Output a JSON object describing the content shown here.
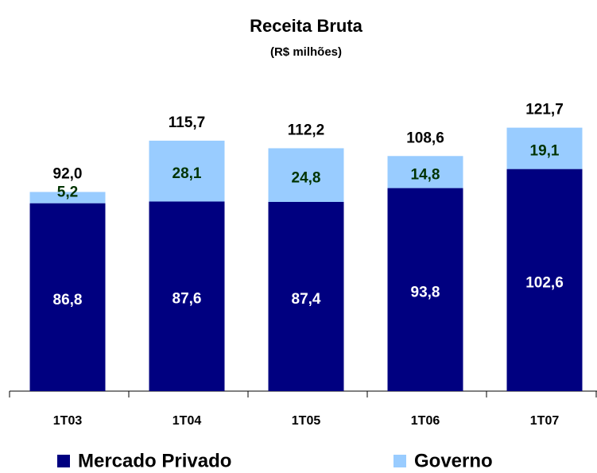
{
  "chart_data": {
    "type": "stacked_bar",
    "title": "Receita Bruta",
    "subtitle": "(R$ milhões)",
    "categories": [
      "1T03",
      "1T04",
      "1T05",
      "1T06",
      "1T07"
    ],
    "series": [
      {
        "name": "Mercado Privado",
        "color": "#000080",
        "label_color": "#ffffff",
        "values": [
          86.8,
          87.6,
          87.4,
          93.8,
          102.6
        ],
        "value_labels": [
          "86,8",
          "87,6",
          "87,4",
          "93,8",
          "102,6"
        ]
      },
      {
        "name": "Governo",
        "color": "#99ccff",
        "label_color": "#003300",
        "values": [
          5.2,
          28.1,
          24.8,
          14.8,
          19.1
        ],
        "value_labels": [
          "5,2",
          "28,1",
          "24,8",
          "14,8",
          "19,1"
        ]
      }
    ],
    "totals": [
      92.0,
      115.7,
      112.2,
      108.6,
      121.7
    ],
    "total_labels": [
      "92,0",
      "115,7",
      "112,2",
      "108,6",
      "121,7"
    ],
    "ylim": [
      0,
      130
    ]
  }
}
